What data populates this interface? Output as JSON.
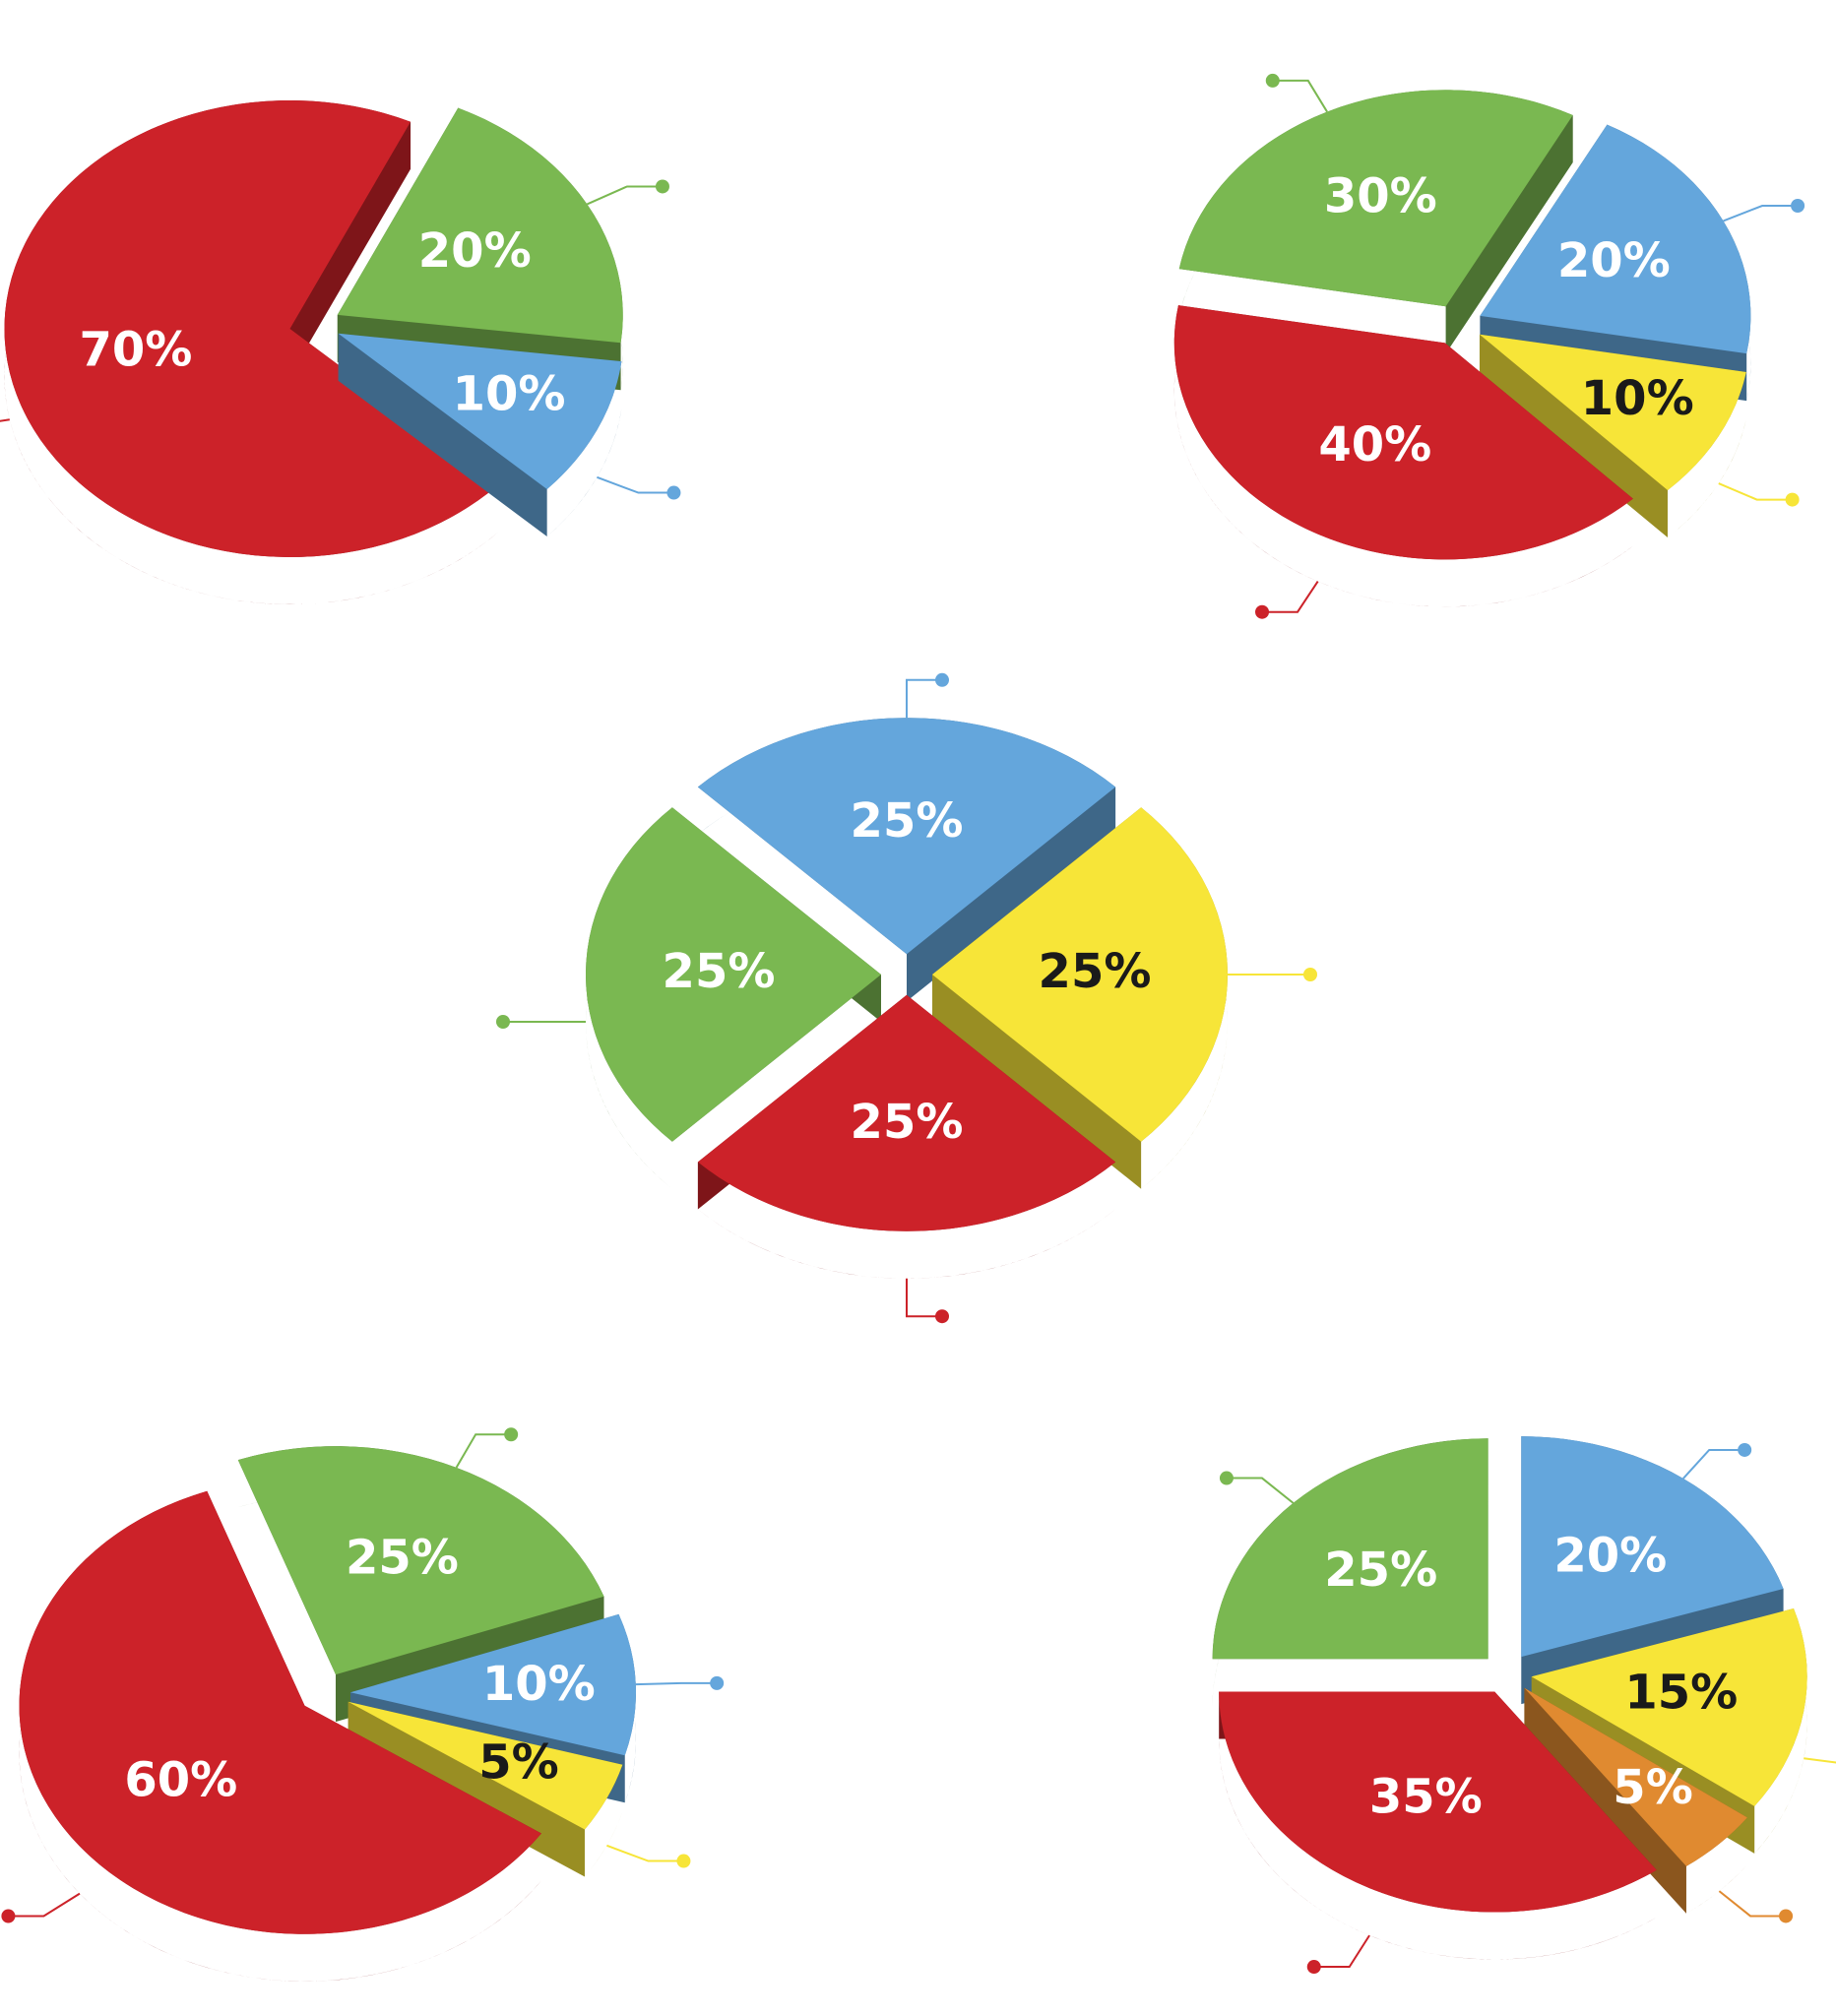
{
  "chart_data": [
    {
      "type": "pie",
      "values": [
        70,
        20,
        10
      ],
      "value_labels": [
        "70%",
        "20%",
        "10%"
      ],
      "colors": [
        "#cc2229",
        "#7ab851",
        "#64a6dc"
      ]
    },
    {
      "type": "pie",
      "values": [
        30,
        20,
        10,
        40
      ],
      "value_labels": [
        "30%",
        "20%",
        "10%",
        "40%"
      ],
      "colors": [
        "#7ab851",
        "#64a6dc",
        "#f7e538",
        "#cc2229"
      ]
    },
    {
      "type": "pie",
      "values": [
        25,
        25,
        25,
        25
      ],
      "value_labels": [
        "25%",
        "25%",
        "25%",
        "25%"
      ],
      "colors": [
        "#64a6dc",
        "#f7e538",
        "#cc2229",
        "#7ab851"
      ]
    },
    {
      "type": "pie",
      "values": [
        25,
        10,
        5,
        60
      ],
      "value_labels": [
        "25%",
        "10%",
        "5%",
        "60%"
      ],
      "colors": [
        "#7ab851",
        "#64a6dc",
        "#f7e538",
        "#cc2229"
      ]
    },
    {
      "type": "pie",
      "values": [
        20,
        15,
        5,
        35,
        25
      ],
      "value_labels": [
        "20%",
        "15%",
        "5%",
        "35%",
        "25%"
      ],
      "colors": [
        "#64a6dc",
        "#f7e538",
        "#e08a30",
        "#cc2229",
        "#7ab851"
      ]
    }
  ]
}
